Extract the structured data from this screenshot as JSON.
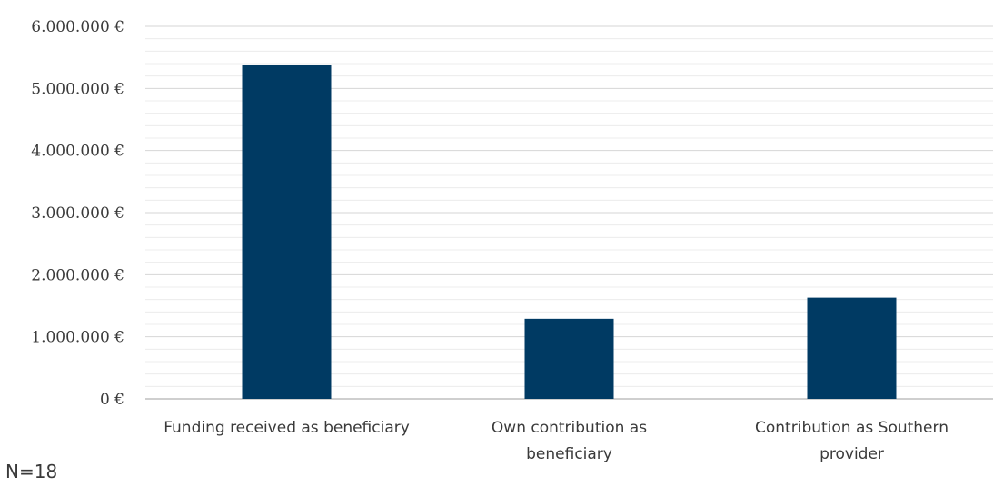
{
  "chart_data": {
    "type": "bar",
    "categories": [
      [
        "Funding received as beneficiary"
      ],
      [
        "Own contribution as",
        "beneficiary"
      ],
      [
        "Contribution as Southern",
        "provider"
      ]
    ],
    "values": [
      5380000,
      1290000,
      1630000
    ],
    "ylim": [
      0,
      6000000
    ],
    "y_ticks": [
      0,
      1000000,
      2000000,
      3000000,
      4000000,
      5000000,
      6000000
    ],
    "y_tick_labels": [
      "0 €",
      "1.000.000 €",
      "2.000.000 €",
      "3.000.000 €",
      "4.000.000 €",
      "5.000.000 €",
      "6.000.000 €"
    ],
    "minor_gridlines_per_major": 5,
    "grid": true,
    "legend": "none",
    "bar_color": "#003a63",
    "title": "",
    "xlabel": "",
    "ylabel": ""
  },
  "note": "N=18"
}
